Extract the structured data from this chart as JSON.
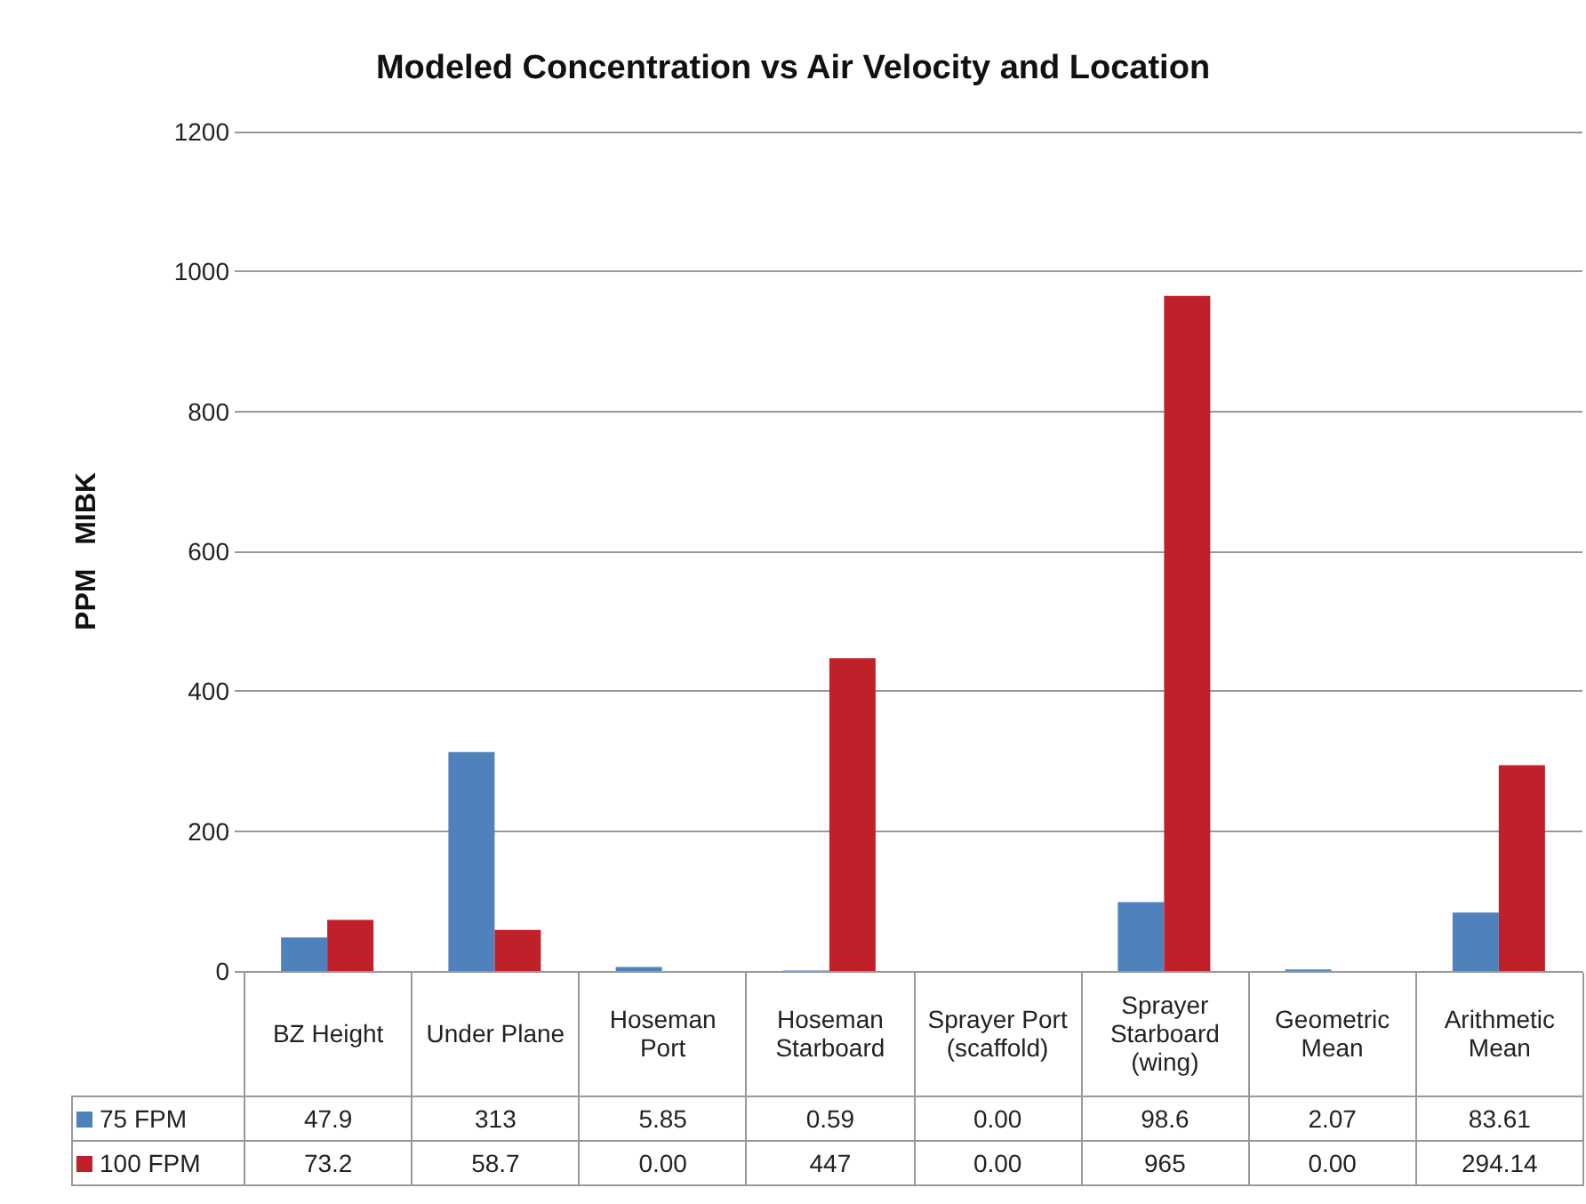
{
  "chart_data": {
    "type": "bar",
    "title": "Modeled Concentration vs Air Velocity and Location",
    "ylabel": "PPM   MIBK",
    "categories": [
      "BZ Height",
      "Under Plane",
      "Hoseman Port",
      "Hoseman Starboard",
      "Sprayer Port (scaffold)",
      "Sprayer Starboard (wing)",
      "Geometric Mean",
      "Arithmetic Mean"
    ],
    "series": [
      {
        "name": "75 FPM",
        "color": "#4f81bd",
        "values": [
          47.9,
          313,
          5.85,
          0.59,
          0.0,
          98.6,
          2.07,
          83.61
        ],
        "value_labels": [
          "47.9",
          "313",
          "5.85",
          "0.59",
          "0.00",
          "98.6",
          "2.07",
          "83.61"
        ]
      },
      {
        "name": "100 FPM",
        "color": "#c0202a",
        "values": [
          73.2,
          58.7,
          0.0,
          447,
          0.0,
          965,
          0.0,
          294.14
        ],
        "value_labels": [
          "73.2",
          "58.7",
          "0.00",
          "447",
          "0.00",
          "965",
          "0.00",
          "294.14"
        ]
      }
    ],
    "ylim": [
      0,
      1200
    ],
    "yticks": [
      0,
      200,
      400,
      600,
      800,
      1000,
      1200
    ],
    "grid": "y",
    "legend": "bottom"
  }
}
